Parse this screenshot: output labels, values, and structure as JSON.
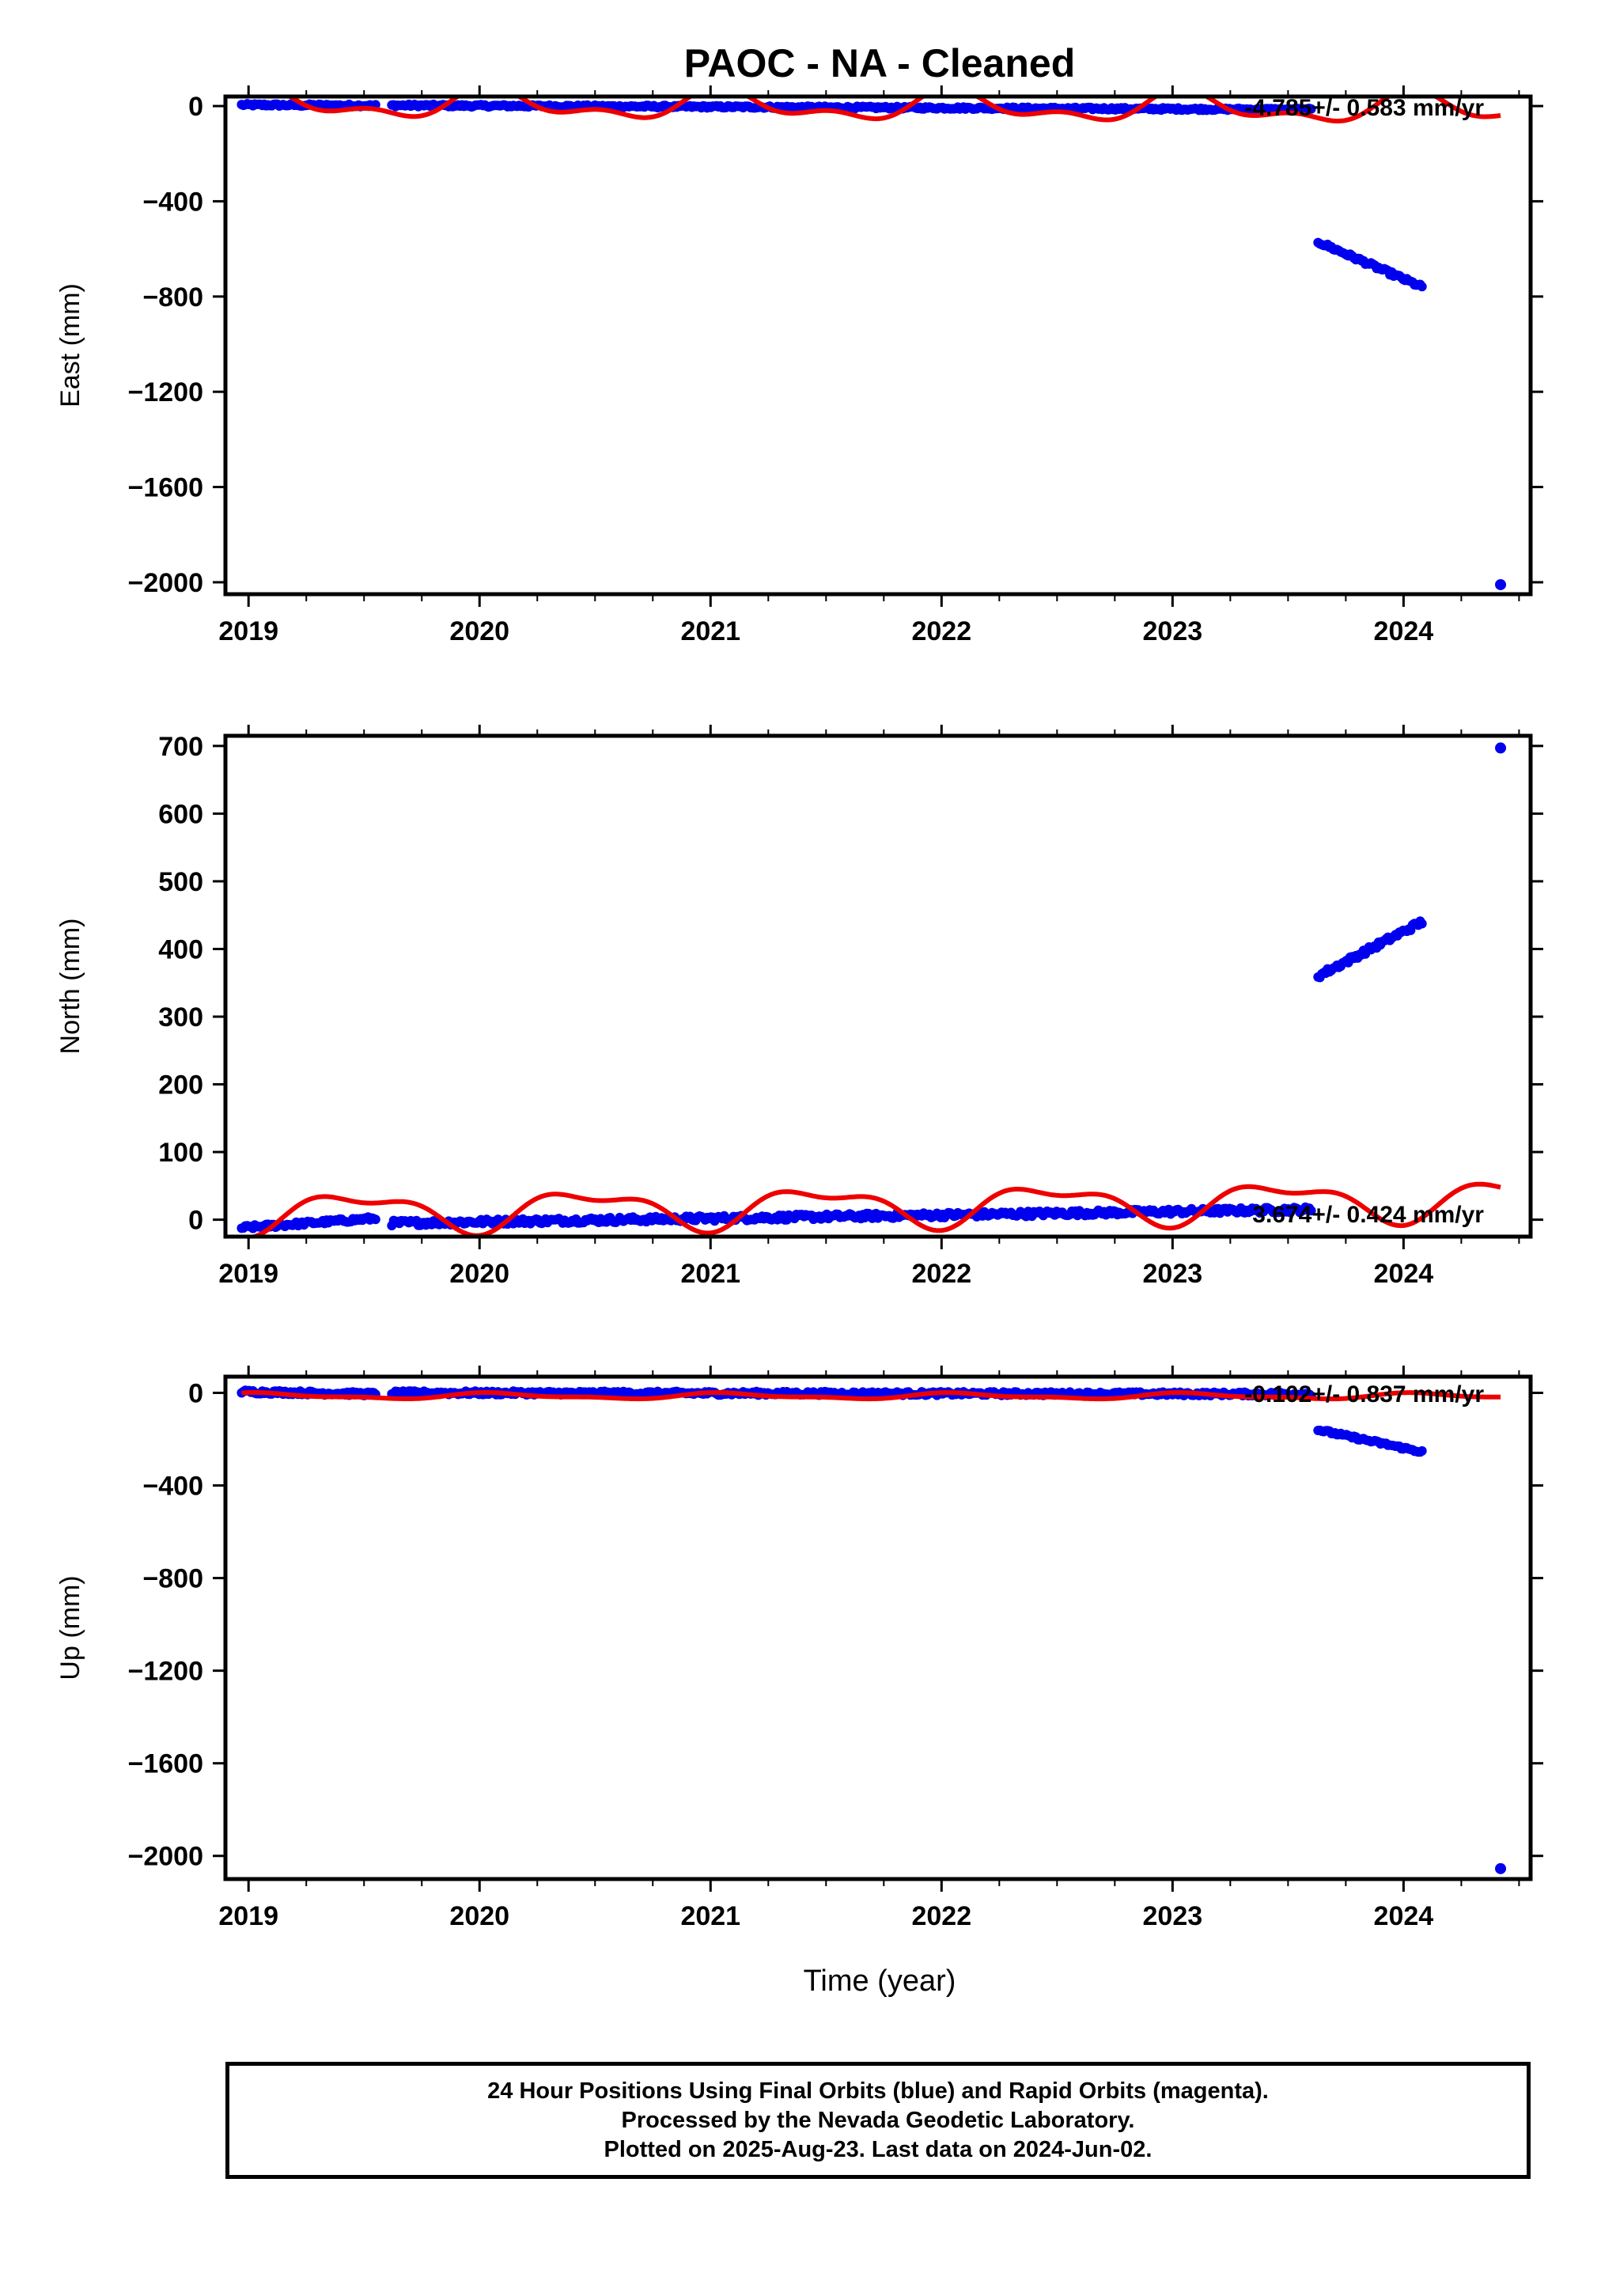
{
  "title": "PAOC  - NA - Cleaned",
  "xlabel": "Time (year)",
  "footer": {
    "line1": "24 Hour Positions Using Final Orbits (blue) and Rapid Orbits (magenta).",
    "line2": "Processed by the Nevada Geodetic Laboratory.",
    "line3": "Plotted on 2025-Aug-23. Last data on 2024-Jun-02."
  },
  "colors": {
    "data": "#0000ee",
    "model": "#ee0000",
    "axis": "#000000"
  },
  "chart_data": [
    {
      "type": "scatter",
      "component": "East",
      "ylabel": "East (mm)",
      "rate_label": "-4.785+/- 0.583 mm/yr",
      "xlim": [
        2018.9,
        2024.55
      ],
      "ylim": [
        -2050,
        40
      ],
      "xticks": [
        2019,
        2020,
        2021,
        2022,
        2023,
        2024
      ],
      "yticks": [
        0,
        -400,
        -800,
        -1200,
        -1600,
        -2000
      ],
      "series": [
        {
          "kind": "points",
          "color": "#0000ee",
          "segments": [
            {
              "x0": 2018.97,
              "x1": 2019.55,
              "y0": 5,
              "y1": 2,
              "noise": 5
            },
            {
              "x0": 2019.62,
              "x1": 2023.6,
              "y0": 3,
              "y1": -15,
              "noise": 5
            },
            {
              "x0": 2023.63,
              "x1": 2024.08,
              "y0": -570,
              "y1": -760,
              "noise": 8
            }
          ],
          "outliers": [
            [
              2024.42,
              -2010
            ]
          ]
        },
        {
          "kind": "model",
          "color": "#ee0000",
          "x0": 2018.97,
          "x1": 2024.42,
          "offset": 0,
          "trend": -4.785,
          "annual_cos": 50,
          "annual_sin": 20,
          "semi_cos": 30,
          "semi_sin": 10,
          "center": 2021.7
        }
      ]
    },
    {
      "type": "scatter",
      "component": "North",
      "ylabel": "North (mm)",
      "rate_label": "3.674+/- 0.424 mm/yr",
      "xlim": [
        2018.9,
        2024.55
      ],
      "ylim": [
        -25,
        715
      ],
      "xticks": [
        2019,
        2020,
        2021,
        2022,
        2023,
        2024
      ],
      "yticks": [
        0,
        100,
        200,
        300,
        400,
        500,
        600,
        700
      ],
      "series": [
        {
          "kind": "points",
          "color": "#0000ee",
          "segments": [
            {
              "x0": 2018.97,
              "x1": 2019.55,
              "y0": -12,
              "y1": 2,
              "noise": 3
            },
            {
              "x0": 2019.62,
              "x1": 2023.6,
              "y0": -5,
              "y1": 15,
              "noise": 4
            },
            {
              "x0": 2023.63,
              "x1": 2024.08,
              "y0": 360,
              "y1": 440,
              "noise": 4
            }
          ],
          "outliers": [
            [
              2024.42,
              697
            ]
          ]
        },
        {
          "kind": "model",
          "color": "#ee0000",
          "x0": 2018.97,
          "x1": 2024.42,
          "offset": 20,
          "trend": 3.674,
          "annual_cos": -25,
          "annual_sin": 5,
          "semi_cos": -12,
          "semi_sin": 0,
          "center": 2021.7
        }
      ]
    },
    {
      "type": "scatter",
      "component": "Up",
      "ylabel": "Up (mm)",
      "rate_label": "-0.102+/- 0.837 mm/yr",
      "xlim": [
        2018.9,
        2024.55
      ],
      "ylim": [
        -2100,
        70
      ],
      "xticks": [
        2019,
        2020,
        2021,
        2022,
        2023,
        2024
      ],
      "yticks": [
        0,
        -400,
        -800,
        -1200,
        -1600,
        -2000
      ],
      "series": [
        {
          "kind": "points",
          "color": "#0000ee",
          "segments": [
            {
              "x0": 2018.97,
              "x1": 2019.55,
              "y0": 5,
              "y1": -5,
              "noise": 8
            },
            {
              "x0": 2019.62,
              "x1": 2023.6,
              "y0": 0,
              "y1": -5,
              "noise": 8
            },
            {
              "x0": 2023.63,
              "x1": 2024.08,
              "y0": -160,
              "y1": -255,
              "noise": 6
            }
          ],
          "outliers": [
            [
              2024.42,
              -2055
            ]
          ]
        },
        {
          "kind": "model",
          "color": "#ee0000",
          "x0": 2018.97,
          "x1": 2024.42,
          "offset": -14,
          "trend": -0.102,
          "annual_cos": 10,
          "annual_sin": 5,
          "semi_cos": 5,
          "semi_sin": 0,
          "center": 2021.7
        }
      ]
    }
  ]
}
